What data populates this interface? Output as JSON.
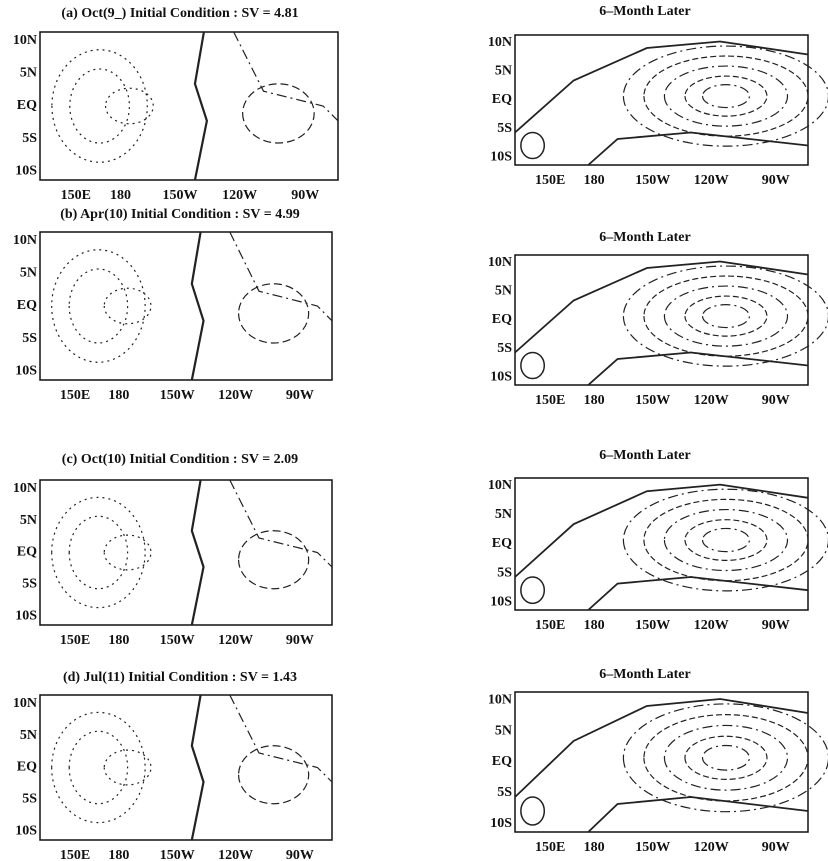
{
  "panels": [
    {
      "left": {
        "title": "(a) Oct(9_)  Initial Condition :  SV = 4.81"
      },
      "right": {
        "title": "6–Month Later"
      }
    },
    {
      "left": {
        "title": "(b) Apr(10)  Initial Condition :  SV = 4.99"
      },
      "right": {
        "title": "6–Month Later"
      }
    },
    {
      "left": {
        "title": "(c) Oct(10)  Initial Condition :  SV = 2.09"
      },
      "right": {
        "title": "6–Month Later"
      }
    },
    {
      "left": {
        "title": "(d) Jul(11)  Initial Condition :  SV = 1.43"
      },
      "right": {
        "title": "6–Month Later"
      }
    }
  ],
  "x_labels": [
    "150E",
    "180",
    "150W",
    "120W",
    "90W"
  ],
  "y_labels": [
    "10N",
    "5N",
    "EQ",
    "5S",
    "10S"
  ]
}
